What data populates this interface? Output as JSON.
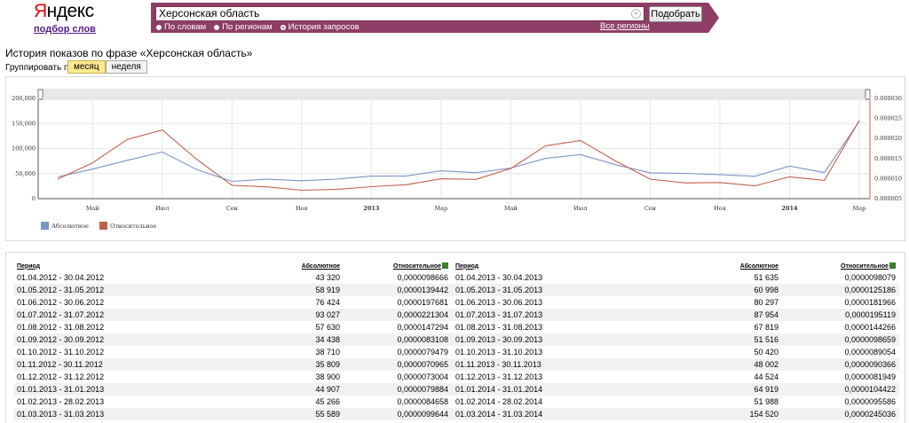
{
  "logo": {
    "brand_first": "Я",
    "brand_rest": "ндекс",
    "subtitle": "подбор слов"
  },
  "search": {
    "query": "Херсонская область",
    "button_label": "Подобрать",
    "all_regions_label": "Все регионы"
  },
  "modes": [
    {
      "label": "По словам",
      "selected": false
    },
    {
      "label": "По регионам",
      "selected": false
    },
    {
      "label": "История запросов",
      "selected": true
    }
  ],
  "page_title": "История показов по фразе «Херсонская область»",
  "group": {
    "label": "Группировать по:",
    "month": "месяц",
    "week": "неделя",
    "active": "month"
  },
  "chart_data": {
    "type": "line",
    "x": [
      "04.2012",
      "05.2012",
      "06.2012",
      "07.2012",
      "08.2012",
      "09.2012",
      "10.2012",
      "11.2012",
      "12.2012",
      "01.2013",
      "02.2013",
      "03.2013",
      "04.2013",
      "05.2013",
      "06.2013",
      "07.2013",
      "08.2013",
      "09.2013",
      "10.2013",
      "11.2013",
      "12.2013",
      "01.2014",
      "02.2014",
      "03.2014"
    ],
    "x_tick_labels": [
      "Май",
      "Июл",
      "Сен",
      "Ноя",
      "2013",
      "Мар",
      "Май",
      "Июл",
      "Сен",
      "Ноя",
      "2014",
      "Мар"
    ],
    "y_left_ticks": [
      "200,000",
      "150,000",
      "100,000",
      "50,000",
      "0"
    ],
    "y_right_ticks": [
      "0.000030",
      "0.000025",
      "0.000020",
      "0.000015",
      "0.000010",
      "0.000005"
    ],
    "ylim_left": [
      0,
      200000
    ],
    "ylim_right": [
      5e-06,
      3e-05
    ],
    "series": [
      {
        "name": "Абсолютное",
        "axis": "left",
        "color": "#7d93c4",
        "values": [
          43320,
          58919,
          76424,
          93027,
          57630,
          34438,
          38710,
          35809,
          38900,
          44907,
          45266,
          55589,
          51635,
          60998,
          80297,
          87954,
          67819,
          51516,
          50420,
          48002,
          44524,
          64919,
          51988,
          154520
        ]
      },
      {
        "name": "Относительное",
        "axis": "right",
        "color": "#c2614a",
        "values": [
          9.8666e-06,
          1.39442e-05,
          1.97681e-05,
          2.21304e-05,
          1.47294e-05,
          8.3108e-06,
          7.9479e-06,
          7.0965e-06,
          7.3004e-06,
          7.9884e-06,
          8.4658e-06,
          9.9644e-06,
          9.8079e-06,
          1.25186e-05,
          1.81966e-05,
          1.95119e-05,
          1.44266e-05,
          9.8659e-06,
          8.9054e-06,
          9.0366e-06,
          8.1949e-06,
          1.04422e-05,
          9.5586e-06,
          2.45036e-05
        ]
      }
    ],
    "legend_position": "bottom-left"
  },
  "table": {
    "headers": {
      "period": "Период",
      "absolute": "Абсолютное",
      "relative": "Относительное"
    },
    "left": [
      [
        "01.04.2012 - 30.04.2012",
        "43 320",
        "0,0000098666"
      ],
      [
        "01.05.2012 - 31.05.2012",
        "58 919",
        "0,0000139442"
      ],
      [
        "01.06.2012 - 30.06.2012",
        "76 424",
        "0,0000197681"
      ],
      [
        "01.07.2012 - 31.07.2012",
        "93 027",
        "0,0000221304"
      ],
      [
        "01.08.2012 - 31.08.2012",
        "57 630",
        "0,0000147294"
      ],
      [
        "01.09.2012 - 30.09.2012",
        "34 438",
        "0,0000083108"
      ],
      [
        "01.10.2012 - 31.10.2012",
        "38 710",
        "0,0000079479"
      ],
      [
        "01.11.2012 - 30.11.2012",
        "35 809",
        "0,0000070965"
      ],
      [
        "01.12.2012 - 31.12.2012",
        "38 900",
        "0,0000073004"
      ],
      [
        "01.01.2013 - 31.01.2013",
        "44 907",
        "0,0000079884"
      ],
      [
        "01.02.2013 - 28.02.2013",
        "45 266",
        "0,0000084658"
      ],
      [
        "01.03.2013 - 31.03.2013",
        "55 589",
        "0,0000099644"
      ]
    ],
    "right": [
      [
        "01.04.2013 - 30.04.2013",
        "51 635",
        "0,0000098079"
      ],
      [
        "01.05.2013 - 31.05.2013",
        "60 998",
        "0,0000125186"
      ],
      [
        "01.06.2013 - 30.06.2013",
        "80 297",
        "0,0000181966"
      ],
      [
        "01.07.2013 - 31.07.2013",
        "87 954",
        "0,0000195119"
      ],
      [
        "01.08.2013 - 31.08.2013",
        "67 819",
        "0,0000144266"
      ],
      [
        "01.09.2013 - 30.09.2013",
        "51 516",
        "0,0000098659"
      ],
      [
        "01.10.2013 - 31.10.2013",
        "50 420",
        "0,0000089054"
      ],
      [
        "01.11.2013 - 30.11.2013",
        "48 002",
        "0,0000090366"
      ],
      [
        "01.12.2013 - 31.12.2013",
        "44 524",
        "0,0000081949"
      ],
      [
        "01.01.2014 - 31.01.2014",
        "64 919",
        "0,0000104422"
      ],
      [
        "01.02.2014 - 28.02.2014",
        "51 988",
        "0,0000095586"
      ],
      [
        "01.03.2014 - 31.03.2014",
        "154 520",
        "0,0000245036"
      ]
    ]
  }
}
